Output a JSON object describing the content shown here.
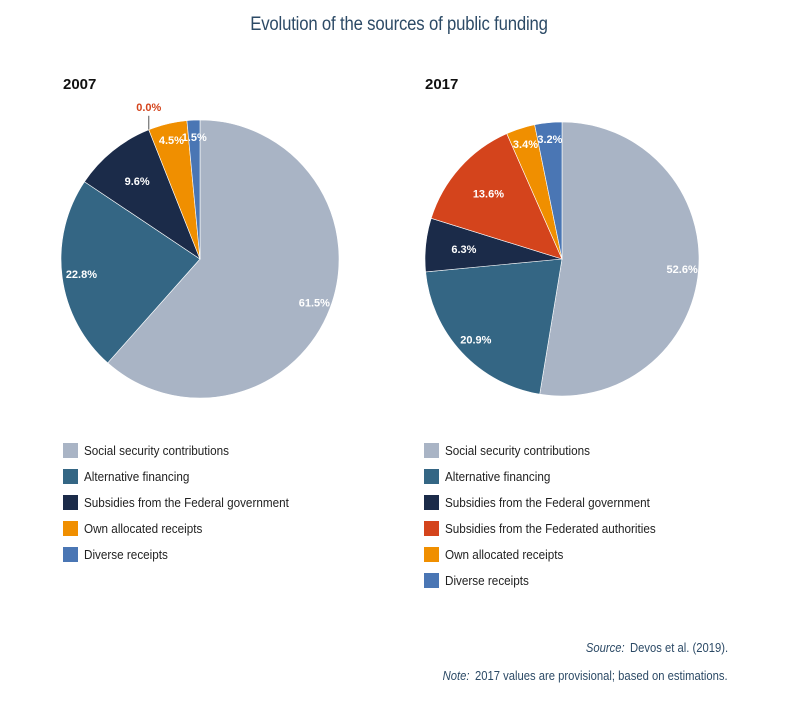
{
  "chart_data": [
    {
      "type": "pie",
      "title": "2007",
      "categories": [
        "Social security contributions",
        "Alternative financing",
        "Subsidies from the Federal government",
        "Subsidies from the Federated authorities",
        "Own allocated receipts",
        "Diverse receipts"
      ],
      "values": [
        61.5,
        22.8,
        9.6,
        0.0,
        4.5,
        1.5
      ],
      "labels": [
        "61.5%",
        "22.8%",
        "9.6%",
        "0.0%",
        "4.5%",
        "1.5%"
      ],
      "colors": [
        "#a9b4c5",
        "#346684",
        "#1b2b49",
        "#d4441c",
        "#f08f00",
        "#4a76b4"
      ],
      "label_colors": [
        "#ffffff",
        "#ffffff",
        "#ffffff",
        "#d4441c",
        "#ffffff",
        "#ffffff"
      ],
      "legend": [
        "Social security contributions",
        "Alternative financing",
        "Subsidies from the Federal government",
        "Own allocated receipts",
        "Diverse receipts"
      ],
      "legend_colors": [
        "#a9b4c5",
        "#346684",
        "#1b2b49",
        "#f08f00",
        "#4a76b4"
      ],
      "legend_placement": "bottom"
    },
    {
      "type": "pie",
      "title": "2017",
      "categories": [
        "Social security contributions",
        "Alternative financing",
        "Subsidies from the Federal government",
        "Subsidies from the Federated authorities",
        "Own allocated receipts",
        "Diverse receipts"
      ],
      "values": [
        52.6,
        20.9,
        6.3,
        13.6,
        3.4,
        3.2
      ],
      "labels": [
        "52.6%",
        "20.9%",
        "6.3%",
        "13.6%",
        "3.4%",
        "3.2%"
      ],
      "colors": [
        "#a9b4c5",
        "#346684",
        "#1b2b49",
        "#d4441c",
        "#f08f00",
        "#4a76b4"
      ],
      "label_colors": [
        "#ffffff",
        "#ffffff",
        "#ffffff",
        "#ffffff",
        "#ffffff",
        "#ffffff"
      ],
      "legend": [
        "Social security contributions",
        "Alternative financing",
        "Subsidies from the Federal government",
        "Subsidies from the Federated authorities",
        "Own allocated receipts",
        "Diverse receipts"
      ],
      "legend_colors": [
        "#a9b4c5",
        "#346684",
        "#1b2b49",
        "#d4441c",
        "#f08f00",
        "#4a76b4"
      ],
      "legend_placement": "bottom"
    }
  ],
  "header": {
    "title": "Evolution of the sources of public funding"
  },
  "footer": {
    "source_label": "Source:",
    "source_text": "Devos et al. (2019).",
    "note_label": "Note:",
    "note_text": "2017 values are provisional; based on estimations."
  }
}
